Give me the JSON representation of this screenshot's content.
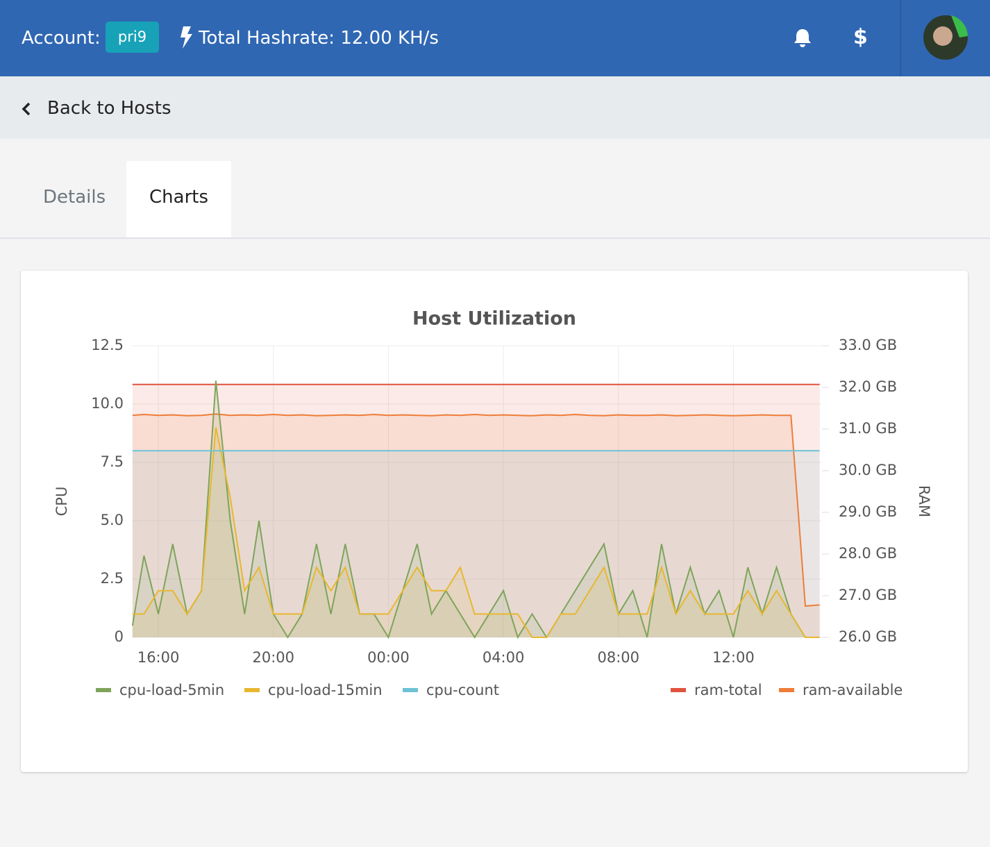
{
  "header": {
    "account_label": "Account:",
    "account": "pri9",
    "hashrate": "Total Hashrate: 12.00 KH/s",
    "billing_icon": "$"
  },
  "nav": {
    "back": "Back to Hosts"
  },
  "tabs": [
    "Details",
    "Charts"
  ],
  "chart_data": {
    "type": "line",
    "title": "Host Utilization",
    "ylabel": "CPU",
    "y2label": "RAM",
    "x": [
      15.1,
      15.5,
      16,
      16.5,
      17,
      17.5,
      18,
      18.5,
      19,
      19.5,
      20,
      20.5,
      21,
      21.5,
      22,
      22.5,
      23,
      23.5,
      24,
      24.5,
      25,
      25.5,
      26,
      26.5,
      27,
      27.5,
      28,
      28.5,
      29,
      29.5,
      30,
      30.5,
      31,
      31.5,
      32,
      32.5,
      33,
      33.5,
      34,
      34.5,
      35,
      35.5,
      36,
      36.5,
      37,
      37.5,
      38,
      38.5,
      39
    ],
    "xlim": [
      15.08,
      39.08
    ],
    "xticks": [
      {
        "value": 16,
        "label": "16:00"
      },
      {
        "value": 20,
        "label": "20:00"
      },
      {
        "value": 24,
        "label": "00:00"
      },
      {
        "value": 28,
        "label": "04:00"
      },
      {
        "value": 32,
        "label": "08:00"
      },
      {
        "value": 36,
        "label": "12:00"
      }
    ],
    "ylim": [
      0,
      12.5
    ],
    "yticks": [
      0,
      2.5,
      {
        "value": 5,
        "label": "5.0"
      },
      7.5,
      {
        "value": 10,
        "label": "10.0"
      },
      12.5
    ],
    "y2lim": [
      26,
      33
    ],
    "y2ticks": [
      {
        "value": 26,
        "label": "26.0 GB"
      },
      {
        "value": 27,
        "label": "27.0 GB"
      },
      {
        "value": 28,
        "label": "28.0 GB"
      },
      {
        "value": 29,
        "label": "29.0 GB"
      },
      {
        "value": 30,
        "label": "30.0 GB"
      },
      {
        "value": 31,
        "label": "31.0 GB"
      },
      {
        "value": 32,
        "label": "32.0 GB"
      },
      {
        "value": 33,
        "label": "33.0 GB"
      }
    ],
    "grid": true,
    "series": [
      {
        "name": "cpu-load-5min",
        "color": "#7ea45a",
        "values": [
          0.5,
          3.5,
          1,
          4,
          1,
          2,
          11,
          5,
          1,
          5,
          1,
          0,
          1,
          4,
          1,
          4,
          1,
          1,
          0,
          2,
          4,
          1,
          2,
          1,
          0,
          1,
          2,
          0,
          1,
          0,
          1,
          2,
          3,
          4,
          1,
          2,
          0,
          4,
          1,
          3,
          1,
          2,
          0,
          3,
          1,
          3,
          1,
          0,
          0
        ]
      },
      {
        "name": "cpu-load-15min",
        "color": "#e8b730",
        "values": [
          1,
          1,
          2,
          2,
          1,
          2,
          9,
          6,
          2,
          3,
          1,
          1,
          1,
          3,
          2,
          3,
          1,
          1,
          1,
          2,
          3,
          2,
          2,
          3,
          1,
          1,
          1,
          1,
          0,
          0,
          1,
          1,
          2,
          3,
          1,
          1,
          1,
          3,
          1,
          2,
          1,
          1,
          1,
          2,
          1,
          2,
          1,
          0,
          0
        ]
      },
      {
        "name": "cpu-count",
        "color": "#6cc3d5",
        "values": [
          8,
          8,
          8,
          8,
          8,
          8,
          8,
          8,
          8,
          8,
          8,
          8,
          8,
          8,
          8,
          8,
          8,
          8,
          8,
          8,
          8,
          8,
          8,
          8,
          8,
          8,
          8,
          8,
          8,
          8,
          8,
          8,
          8,
          8,
          8,
          8,
          8,
          8,
          8,
          8,
          8,
          8,
          8,
          8,
          8,
          8,
          8,
          8,
          8
        ]
      },
      {
        "name": "ram-total",
        "color": "#e0533d",
        "axis": "y2",
        "values": [
          32.07,
          32.07,
          32.07,
          32.07,
          32.07,
          32.07,
          32.07,
          32.07,
          32.07,
          32.07,
          32.07,
          32.07,
          32.07,
          32.07,
          32.07,
          32.07,
          32.07,
          32.07,
          32.07,
          32.07,
          32.07,
          32.07,
          32.07,
          32.07,
          32.07,
          32.07,
          32.07,
          32.07,
          32.07,
          32.07,
          32.07,
          32.07,
          32.07,
          32.07,
          32.07,
          32.07,
          32.07,
          32.07,
          32.07,
          32.07,
          32.07,
          32.07,
          32.07,
          32.07,
          32.07,
          32.07,
          32.07,
          32.07,
          32.07
        ]
      },
      {
        "name": "ram-available",
        "color": "#ee7d38",
        "axis": "y2",
        "values": [
          31.33,
          31.35,
          31.33,
          31.34,
          31.32,
          31.33,
          31.36,
          31.33,
          31.34,
          31.33,
          31.35,
          31.33,
          31.34,
          31.32,
          31.33,
          31.34,
          31.33,
          31.35,
          31.33,
          31.34,
          31.33,
          31.32,
          31.34,
          31.33,
          31.35,
          31.33,
          31.34,
          31.33,
          31.32,
          31.34,
          31.33,
          31.35,
          31.33,
          31.32,
          31.34,
          31.33,
          31.33,
          31.34,
          31.32,
          31.33,
          31.34,
          31.33,
          31.32,
          31.33,
          31.34,
          31.33,
          31.33,
          26.75,
          26.78
        ]
      }
    ]
  }
}
